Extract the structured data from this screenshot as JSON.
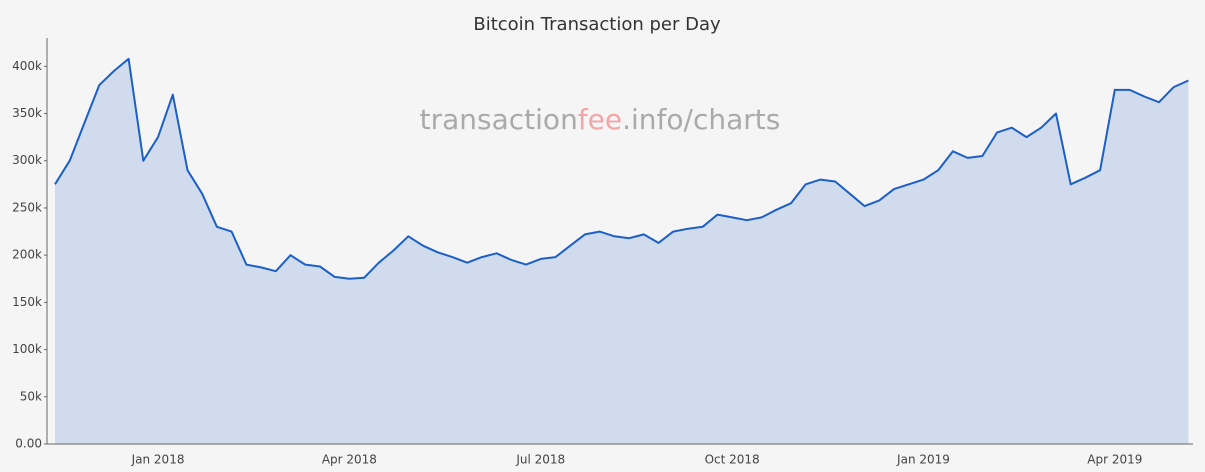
{
  "chart_data": {
    "type": "area",
    "title": "Bitcoin Transaction per Day",
    "watermark": [
      "transaction",
      "fee",
      ".info/charts"
    ],
    "categories": [
      null,
      null,
      null,
      null,
      null,
      null,
      null,
      "Jan 2018",
      null,
      null,
      null,
      null,
      null,
      null,
      null,
      null,
      null,
      null,
      null,
      null,
      "Apr 2018",
      null,
      null,
      null,
      null,
      null,
      null,
      null,
      null,
      null,
      null,
      null,
      null,
      "Jul 2018",
      null,
      null,
      null,
      null,
      null,
      null,
      null,
      null,
      null,
      null,
      null,
      null,
      "Oct 2018",
      null,
      null,
      null,
      null,
      null,
      null,
      null,
      null,
      null,
      null,
      null,
      null,
      "Jan 2019",
      null,
      null,
      null,
      null,
      null,
      null,
      null,
      null,
      null,
      null,
      null,
      null,
      "Apr 2019",
      null,
      null,
      null,
      null,
      null
    ],
    "values": [
      275000,
      300000,
      340000,
      380000,
      395000,
      408000,
      300000,
      325000,
      370000,
      290000,
      265000,
      230000,
      225000,
      190000,
      187000,
      183000,
      200000,
      190000,
      188000,
      177000,
      175000,
      176000,
      192000,
      205000,
      220000,
      210000,
      203000,
      198000,
      192000,
      198000,
      202000,
      195000,
      190000,
      196000,
      198000,
      210000,
      222000,
      225000,
      220000,
      218000,
      222000,
      213000,
      225000,
      228000,
      230000,
      243000,
      240000,
      237000,
      240000,
      248000,
      255000,
      275000,
      280000,
      278000,
      265000,
      252000,
      258000,
      270000,
      275000,
      280000,
      290000,
      310000,
      303000,
      305000,
      330000,
      335000,
      325000,
      335000,
      350000,
      275000,
      282000,
      290000,
      375000,
      375000,
      368000,
      362000,
      378000,
      385000
    ],
    "color": "#1c5fc7",
    "fill": "#d0dcee",
    "ylim": [
      0,
      430000
    ],
    "yticks": [
      {
        "value": 0,
        "label": "0.00"
      },
      {
        "value": 50000,
        "label": "50k"
      },
      {
        "value": 100000,
        "label": "100k"
      },
      {
        "value": 150000,
        "label": "150k"
      },
      {
        "value": 200000,
        "label": "200k"
      },
      {
        "value": 250000,
        "label": "250k"
      },
      {
        "value": 300000,
        "label": "300k"
      },
      {
        "value": 350000,
        "label": "350k"
      },
      {
        "value": 400000,
        "label": "400k"
      }
    ]
  }
}
